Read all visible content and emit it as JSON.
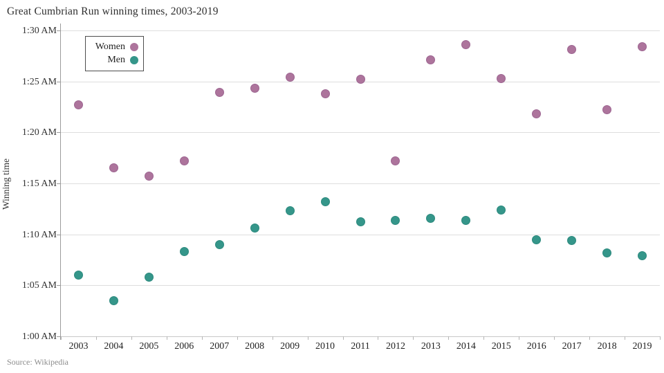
{
  "title": "Great Cumbrian Run winning times, 2003-2019",
  "source": "Source: Wikipedia",
  "legend": {
    "items": [
      {
        "label": "Women",
        "color": "#ad749c",
        "edge": "#9d6591"
      },
      {
        "label": "Men",
        "color": "#35968a",
        "edge": "#2d8a7e"
      }
    ]
  },
  "y_axis": {
    "label": "Winning time",
    "ticks": [
      "1:30 AM",
      "1:25 AM",
      "1:20 AM",
      "1:15 AM",
      "1:10 AM",
      "1:05 AM",
      "1:00 AM"
    ]
  },
  "x_axis": {
    "ticks": [
      "2003",
      "2004",
      "2005",
      "2006",
      "2007",
      "2008",
      "2009",
      "2010",
      "2011",
      "2012",
      "2013",
      "2014",
      "2015",
      "2016",
      "2017",
      "2018",
      "2019"
    ]
  },
  "chart_data": {
    "type": "scatter",
    "title": "Great Cumbrian Run winning times, 2003-2019",
    "source": "Source: Wikipedia",
    "categories": [
      2003,
      2004,
      2005,
      2006,
      2007,
      2008,
      2009,
      2010,
      2011,
      2012,
      2013,
      2014,
      2015,
      2016,
      2017,
      2018,
      2019
    ],
    "xlabel": "",
    "ylabel": "Winning time",
    "ylim_minutes": [
      60,
      90
    ],
    "y_tick_step_minutes": 5,
    "y_tick_labels": [
      "1:00 AM",
      "1:05 AM",
      "1:10 AM",
      "1:15 AM",
      "1:20 AM",
      "1:25 AM",
      "1:30 AM"
    ],
    "grid": "horizontal",
    "legend_position": "top-left-inside",
    "series": [
      {
        "name": "Women",
        "color": "#ad749c",
        "values_minutes": [
          82.7,
          76.5,
          75.7,
          77.2,
          83.9,
          84.3,
          85.4,
          83.8,
          85.2,
          77.2,
          87.1,
          88.6,
          85.3,
          81.8,
          88.1,
          82.2,
          88.4
        ],
        "values_time": [
          "1:22:42",
          "1:16:30",
          "1:15:42",
          "1:17:12",
          "1:23:54",
          "1:24:18",
          "1:25:24",
          "1:23:48",
          "1:25:12",
          "1:17:12",
          "1:27:06",
          "1:28:36",
          "1:25:18",
          "1:21:48",
          "1:28:06",
          "1:22:12",
          "1:28:24"
        ]
      },
      {
        "name": "Men",
        "color": "#35968a",
        "values_minutes": [
          66.0,
          63.5,
          65.8,
          68.3,
          69.0,
          70.6,
          72.3,
          73.2,
          71.2,
          71.4,
          71.6,
          71.4,
          72.4,
          69.5,
          69.4,
          68.2,
          67.9
        ],
        "values_time": [
          "1:06:00",
          "1:03:30",
          "1:05:48",
          "1:08:18",
          "1:09:00",
          "1:10:36",
          "1:12:18",
          "1:13:12",
          "1:11:12",
          "1:11:24",
          "1:11:36",
          "1:11:24",
          "1:12:24",
          "1:09:30",
          "1:09:24",
          "1:08:12",
          "1:07:54"
        ]
      }
    ]
  }
}
